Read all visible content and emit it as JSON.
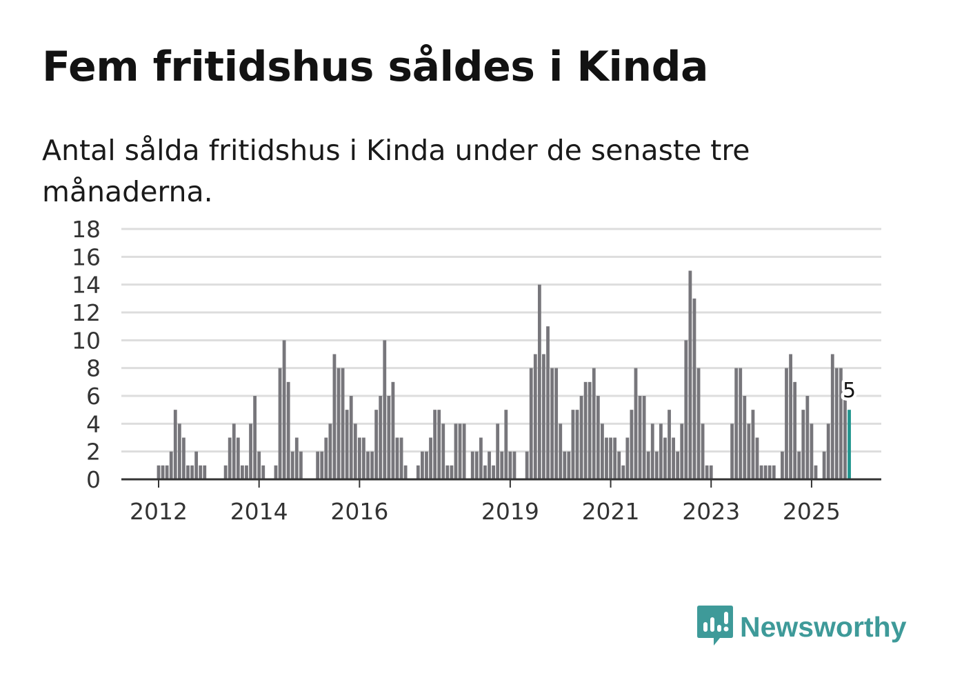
{
  "title": "Fem fritidshus såldes i Kinda",
  "subtitle": "Antal sålda fritidshus i Kinda under de senaste tre månaderna.",
  "brand": {
    "name": "Newsworthy",
    "color": "#3e9a99"
  },
  "colors": {
    "bar": "#77767b",
    "highlight": "#21968f",
    "grid": "#dddddd",
    "axis": "#333333"
  },
  "chart_data": {
    "type": "bar",
    "title": "Fem fritidshus såldes i Kinda",
    "xlabel": "",
    "ylabel": "",
    "ylim": [
      0,
      18
    ],
    "yticks": [
      0,
      2,
      4,
      6,
      8,
      10,
      12,
      14,
      16,
      18
    ],
    "xticks": [
      "2012",
      "2014",
      "2016",
      "2019",
      "2021",
      "2023",
      "2025"
    ],
    "start": "2011-09",
    "highlight_label": "5",
    "values": [
      0,
      0,
      0,
      0,
      1,
      1,
      1,
      2,
      5,
      4,
      3,
      1,
      1,
      2,
      1,
      1,
      0,
      0,
      0,
      0,
      1,
      3,
      4,
      3,
      1,
      1,
      4,
      6,
      2,
      1,
      0,
      0,
      1,
      8,
      10,
      7,
      2,
      3,
      2,
      0,
      0,
      0,
      2,
      2,
      3,
      4,
      9,
      8,
      8,
      5,
      6,
      4,
      3,
      3,
      2,
      2,
      5,
      6,
      10,
      6,
      7,
      3,
      3,
      1,
      0,
      0,
      1,
      2,
      2,
      3,
      5,
      5,
      4,
      1,
      1,
      4,
      4,
      4,
      0,
      2,
      2,
      3,
      1,
      2,
      1,
      4,
      2,
      5,
      2,
      2,
      0,
      0,
      2,
      8,
      9,
      14,
      9,
      11,
      8,
      8,
      4,
      2,
      2,
      5,
      5,
      6,
      7,
      7,
      8,
      6,
      4,
      3,
      3,
      3,
      2,
      1,
      3,
      5,
      8,
      6,
      6,
      2,
      4,
      2,
      4,
      3,
      5,
      3,
      2,
      4,
      10,
      15,
      13,
      8,
      4,
      1,
      1,
      0,
      0,
      0,
      0,
      4,
      8,
      8,
      6,
      4,
      5,
      3,
      1,
      1,
      1,
      1,
      0,
      2,
      8,
      9,
      7,
      2,
      5,
      6,
      4,
      1,
      0,
      2,
      4,
      9,
      8,
      8,
      6,
      5
    ]
  }
}
